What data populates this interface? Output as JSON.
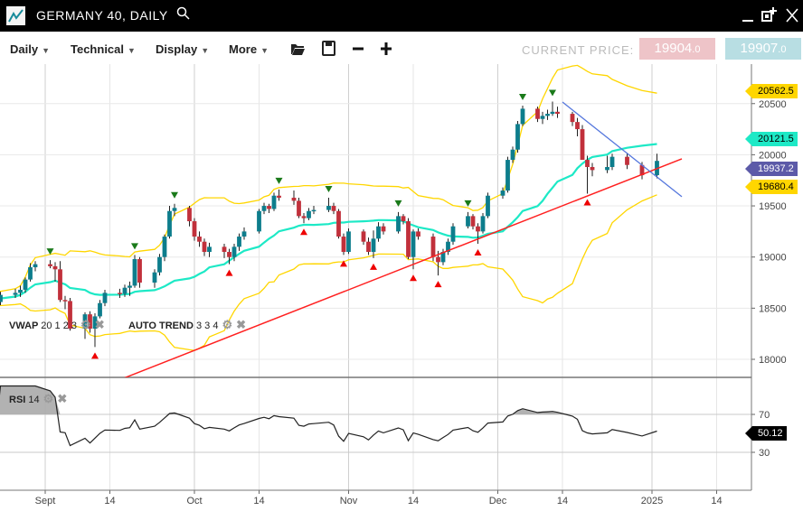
{
  "window": {
    "title": "GERMANY 40, DAILY",
    "icons": [
      "chart-logo-icon",
      "search-icon",
      "minimize-icon",
      "popout-icon",
      "close-icon"
    ]
  },
  "toolbar": {
    "menus": [
      "Daily",
      "Technical",
      "Display",
      "More"
    ],
    "current_price_label": "CURRENT PRICE:",
    "sell_price": "19904",
    "sell_decimal": ".0",
    "buy_price": "19907",
    "buy_decimal": ".0",
    "sell_color": "#eec4c8",
    "buy_color": "#b8dee3"
  },
  "indicators": {
    "vwap": {
      "name": "VWAP",
      "params": "20 1 2 3"
    },
    "trend": {
      "name": "AUTO TREND",
      "params": "3 3 4"
    },
    "rsi": {
      "name": "RSI",
      "params": "14"
    }
  },
  "price_axis": {
    "ticks": [
      "18000",
      "18500",
      "19000",
      "19500",
      "20000",
      "20500"
    ],
    "tags": [
      {
        "value": "20562.5",
        "color": "#ffd600",
        "text": "#000"
      },
      {
        "value": "20121.5",
        "color": "#1de9c6",
        "text": "#000"
      },
      {
        "value": "19937.2",
        "color": "#5c5aa8",
        "text": "#fff"
      },
      {
        "value": "19680.4",
        "color": "#ffd600",
        "text": "#000"
      }
    ]
  },
  "rsi_axis": {
    "ticks": [
      "70",
      "30"
    ],
    "tag": "50.12"
  },
  "time_axis": {
    "ticks": [
      {
        "label": "Sept",
        "date": "2024-09-01",
        "major": true
      },
      {
        "label": "14",
        "date": "2024-09-14"
      },
      {
        "label": "Oct",
        "date": "2024-10-01",
        "major": true
      },
      {
        "label": "14",
        "date": "2024-10-14"
      },
      {
        "label": "Nov",
        "date": "2024-11-01",
        "major": true
      },
      {
        "label": "14",
        "date": "2024-11-14"
      },
      {
        "label": "Dec",
        "date": "2024-12-01",
        "major": true
      },
      {
        "label": "14",
        "date": "2024-12-14"
      },
      {
        "label": "2025",
        "date": "2025-01-01",
        "major": true
      },
      {
        "label": "14",
        "date": "2025-01-14"
      }
    ]
  },
  "chart_data": {
    "type": "candlestick",
    "colors": {
      "up": "#0d7d8c",
      "down": "#c1303b",
      "sma": "#1de9c6",
      "bands": "#ffd600",
      "support": "#ff2020",
      "resistance": "#5577dd"
    },
    "candles": [
      [
        "2024-08-22",
        18520,
        18600,
        18480,
        18560
      ],
      [
        "2024-08-23",
        18560,
        18660,
        18530,
        18630
      ],
      [
        "2024-08-26",
        18630,
        18690,
        18600,
        18650
      ],
      [
        "2024-08-27",
        18650,
        18720,
        18610,
        18680
      ],
      [
        "2024-08-28",
        18680,
        18800,
        18650,
        18780
      ],
      [
        "2024-08-29",
        18780,
        18940,
        18760,
        18900
      ],
      [
        "2024-08-30",
        18900,
        18960,
        18860,
        18930
      ],
      [
        "2024-09-02",
        18930,
        18970,
        18890,
        18910
      ],
      [
        "2024-09-03",
        18910,
        18950,
        18760,
        18880
      ],
      [
        "2024-09-04",
        18880,
        18960,
        18560,
        18580
      ],
      [
        "2024-09-05",
        18580,
        18620,
        18490,
        18570
      ],
      [
        "2024-09-06",
        18570,
        18600,
        18280,
        18300
      ],
      [
        "2024-09-09",
        18300,
        18460,
        18200,
        18440
      ],
      [
        "2024-09-10",
        18440,
        18470,
        18260,
        18300
      ],
      [
        "2024-09-11",
        18300,
        18450,
        18120,
        18420
      ],
      [
        "2024-09-12",
        18420,
        18580,
        18400,
        18550
      ],
      [
        "2024-09-13",
        18550,
        18680,
        18520,
        18650
      ],
      [
        "2024-09-16",
        18650,
        18690,
        18600,
        18640
      ],
      [
        "2024-09-17",
        18640,
        18730,
        18610,
        18700
      ],
      [
        "2024-09-18",
        18700,
        18760,
        18620,
        18720
      ],
      [
        "2024-09-19",
        18720,
        19020,
        18700,
        18980
      ],
      [
        "2024-09-20",
        18980,
        19000,
        18700,
        18750
      ],
      [
        "2024-09-23",
        18750,
        18880,
        18700,
        18850
      ],
      [
        "2024-09-24",
        18850,
        19030,
        18820,
        19000
      ],
      [
        "2024-09-25",
        19000,
        19220,
        18960,
        19200
      ],
      [
        "2024-09-26",
        19200,
        19500,
        19180,
        19450
      ],
      [
        "2024-09-27",
        19450,
        19520,
        19400,
        19480
      ],
      [
        "2024-09-30",
        19480,
        19500,
        19300,
        19350
      ],
      [
        "2024-10-01",
        19350,
        19380,
        19160,
        19200
      ],
      [
        "2024-10-02",
        19200,
        19250,
        19100,
        19150
      ],
      [
        "2024-10-03",
        19150,
        19180,
        19010,
        19050
      ],
      [
        "2024-10-04",
        19050,
        19140,
        19000,
        19100
      ],
      [
        "2024-10-07",
        19100,
        19130,
        18990,
        19050
      ],
      [
        "2024-10-08",
        19050,
        19080,
        18930,
        19000
      ],
      [
        "2024-10-09",
        19000,
        19130,
        18960,
        19100
      ],
      [
        "2024-10-10",
        19100,
        19230,
        19060,
        19200
      ],
      [
        "2024-10-11",
        19200,
        19290,
        19170,
        19250
      ],
      [
        "2024-10-14",
        19250,
        19470,
        19230,
        19450
      ],
      [
        "2024-10-15",
        19450,
        19530,
        19420,
        19500
      ],
      [
        "2024-10-16",
        19500,
        19520,
        19430,
        19470
      ],
      [
        "2024-10-17",
        19470,
        19630,
        19450,
        19600
      ],
      [
        "2024-10-18",
        19600,
        19660,
        19550,
        19580
      ],
      [
        "2024-10-21",
        19580,
        19650,
        19510,
        19550
      ],
      [
        "2024-10-22",
        19550,
        19580,
        19380,
        19400
      ],
      [
        "2024-10-23",
        19400,
        19430,
        19330,
        19380
      ],
      [
        "2024-10-24",
        19380,
        19480,
        19360,
        19450
      ],
      [
        "2024-10-25",
        19450,
        19500,
        19420,
        19460
      ],
      [
        "2024-10-28",
        19460,
        19580,
        19440,
        19500
      ],
      [
        "2024-10-29",
        19500,
        19530,
        19420,
        19450
      ],
      [
        "2024-10-30",
        19450,
        19470,
        19180,
        19200
      ],
      [
        "2024-10-31",
        19200,
        19230,
        19020,
        19050
      ],
      [
        "2024-11-01",
        19050,
        19280,
        19030,
        19250
      ],
      [
        "2024-11-04",
        19250,
        19270,
        19120,
        19150
      ],
      [
        "2024-11-05",
        19150,
        19190,
        19020,
        19050
      ],
      [
        "2024-11-06",
        19050,
        19260,
        18990,
        19180
      ],
      [
        "2024-11-07",
        19180,
        19340,
        19150,
        19300
      ],
      [
        "2024-11-08",
        19300,
        19330,
        19220,
        19250
      ],
      [
        "2024-11-11",
        19250,
        19440,
        19230,
        19400
      ],
      [
        "2024-11-12",
        19400,
        19420,
        19320,
        19350
      ],
      [
        "2024-11-13",
        19350,
        19380,
        18980,
        19000
      ],
      [
        "2024-11-14",
        19000,
        19270,
        18880,
        19250
      ],
      [
        "2024-11-15",
        19250,
        19280,
        19170,
        19200
      ],
      [
        "2024-11-18",
        19200,
        19230,
        18960,
        19000
      ],
      [
        "2024-11-19",
        19000,
        19060,
        18820,
        18950
      ],
      [
        "2024-11-20",
        18950,
        19080,
        18920,
        19050
      ],
      [
        "2024-11-21",
        19050,
        19180,
        19020,
        19150
      ],
      [
        "2024-11-22",
        19150,
        19330,
        19120,
        19300
      ],
      [
        "2024-11-25",
        19300,
        19440,
        19280,
        19400
      ],
      [
        "2024-11-26",
        19400,
        19420,
        19270,
        19300
      ],
      [
        "2024-11-27",
        19300,
        19330,
        19130,
        19250
      ],
      [
        "2024-11-28",
        19250,
        19430,
        19230,
        19400
      ],
      [
        "2024-11-29",
        19400,
        19630,
        19380,
        19600
      ],
      [
        "2024-12-02",
        19600,
        19680,
        19570,
        19650
      ],
      [
        "2024-12-03",
        19650,
        19980,
        19630,
        19950
      ],
      [
        "2024-12-04",
        19950,
        20080,
        19920,
        20050
      ],
      [
        "2024-12-05",
        20050,
        20330,
        20020,
        20300
      ],
      [
        "2024-12-06",
        20300,
        20480,
        20280,
        20450
      ],
      [
        "2024-12-09",
        20450,
        20470,
        20320,
        20350
      ],
      [
        "2024-12-10",
        20350,
        20420,
        20300,
        20380
      ],
      [
        "2024-12-11",
        20380,
        20440,
        20340,
        20400
      ],
      [
        "2024-12-12",
        20400,
        20520,
        20380,
        20420
      ],
      [
        "2024-12-13",
        20420,
        20470,
        20360,
        20400
      ],
      [
        "2024-12-16",
        20400,
        20420,
        20280,
        20320
      ],
      [
        "2024-12-17",
        20320,
        20360,
        20180,
        20250
      ],
      [
        "2024-12-18",
        20250,
        20290,
        19960,
        19950
      ],
      [
        "2024-12-19",
        19950,
        19990,
        19620,
        19880
      ],
      [
        "2024-12-20",
        19880,
        19920,
        19790,
        19850
      ],
      [
        "2024-12-23",
        19850,
        19990,
        19820,
        19880
      ],
      [
        "2024-12-24",
        19880,
        20010,
        19850,
        19980
      ],
      [
        "2024-12-27",
        19980,
        20010,
        19860,
        19900
      ],
      [
        "2024-12-30",
        19900,
        19930,
        19760,
        19800
      ],
      [
        "2025-01-02",
        19800,
        20010,
        19770,
        19940
      ]
    ],
    "support_line": [
      [
        "2024-09-17",
        17820
      ],
      [
        "2025-01-07",
        19960
      ]
    ],
    "resistance_line": [
      [
        "2024-12-14",
        20515
      ],
      [
        "2025-01-07",
        19590
      ]
    ],
    "price_range": [
      17820,
      20900
    ],
    "rsi_range": [
      0,
      100
    ],
    "grid": true
  }
}
